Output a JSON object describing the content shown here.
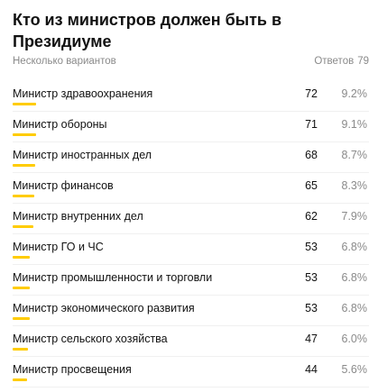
{
  "poll": {
    "title": "Кто из министров должен быть в Президиуме",
    "subtitle": "Несколько вариантов",
    "answers_label": "Ответов",
    "answers_count": "79",
    "accent_color": "#ffcc00",
    "options": [
      {
        "label": "Министр здравоохранения",
        "count": "72",
        "percent": "9.2%",
        "share": 0.092
      },
      {
        "label": "Министр обороны",
        "count": "71",
        "percent": "9.1%",
        "share": 0.091
      },
      {
        "label": "Министр иностранных дел",
        "count": "68",
        "percent": "8.7%",
        "share": 0.087
      },
      {
        "label": "Министр финансов",
        "count": "65",
        "percent": "8.3%",
        "share": 0.083
      },
      {
        "label": "Министр внутренних дел",
        "count": "62",
        "percent": "7.9%",
        "share": 0.079
      },
      {
        "label": "Министр ГО и ЧС",
        "count": "53",
        "percent": "6.8%",
        "share": 0.068
      },
      {
        "label": "Министр промышленности и торговли",
        "count": "53",
        "percent": "6.8%",
        "share": 0.068
      },
      {
        "label": "Министр экономического развития",
        "count": "53",
        "percent": "6.8%",
        "share": 0.068
      },
      {
        "label": "Министр сельского хозяйства",
        "count": "47",
        "percent": "6.0%",
        "share": 0.06
      },
      {
        "label": "Министр просвещения",
        "count": "44",
        "percent": "5.6%",
        "share": 0.056
      }
    ]
  }
}
